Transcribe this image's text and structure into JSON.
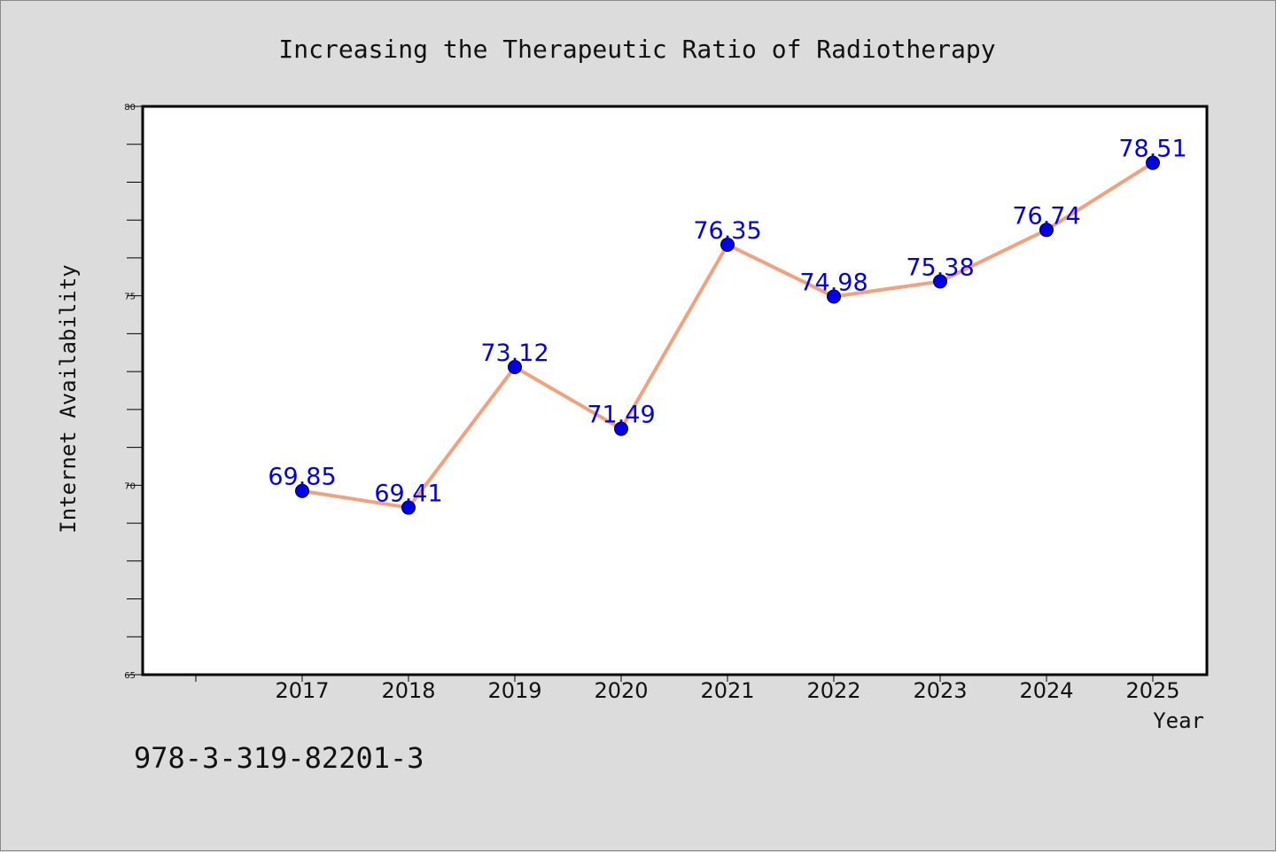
{
  "chart_data": {
    "type": "line",
    "title": "Increasing the Therapeutic Ratio of Radiotherapy",
    "xlabel": "Year",
    "ylabel": "Internet Availability",
    "categories": [
      "2017",
      "2018",
      "2019",
      "2020",
      "2021",
      "2022",
      "2023",
      "2024",
      "2025"
    ],
    "series": [
      {
        "values": [
          69.85,
          69.41,
          73.12,
          71.49,
          76.35,
          74.98,
          75.38,
          76.74,
          78.51
        ],
        "labels": [
          "69.85",
          "69.41",
          "73.12",
          "71.49",
          "76.35",
          "74.98",
          "75.38",
          "76.74",
          "78.51"
        ]
      }
    ],
    "ylim": [
      65,
      80
    ],
    "yticks": [
      "65",
      "70",
      "75",
      "80"
    ],
    "grid": false,
    "legend": "none",
    "colors": {
      "line": "#f4a07a",
      "marker": "#0000ee",
      "label": "#0000ee",
      "background": "#dcdcdc",
      "plot_background": "#ffffff"
    }
  },
  "footer": {
    "isbn": "978-3-319-82201-3"
  }
}
